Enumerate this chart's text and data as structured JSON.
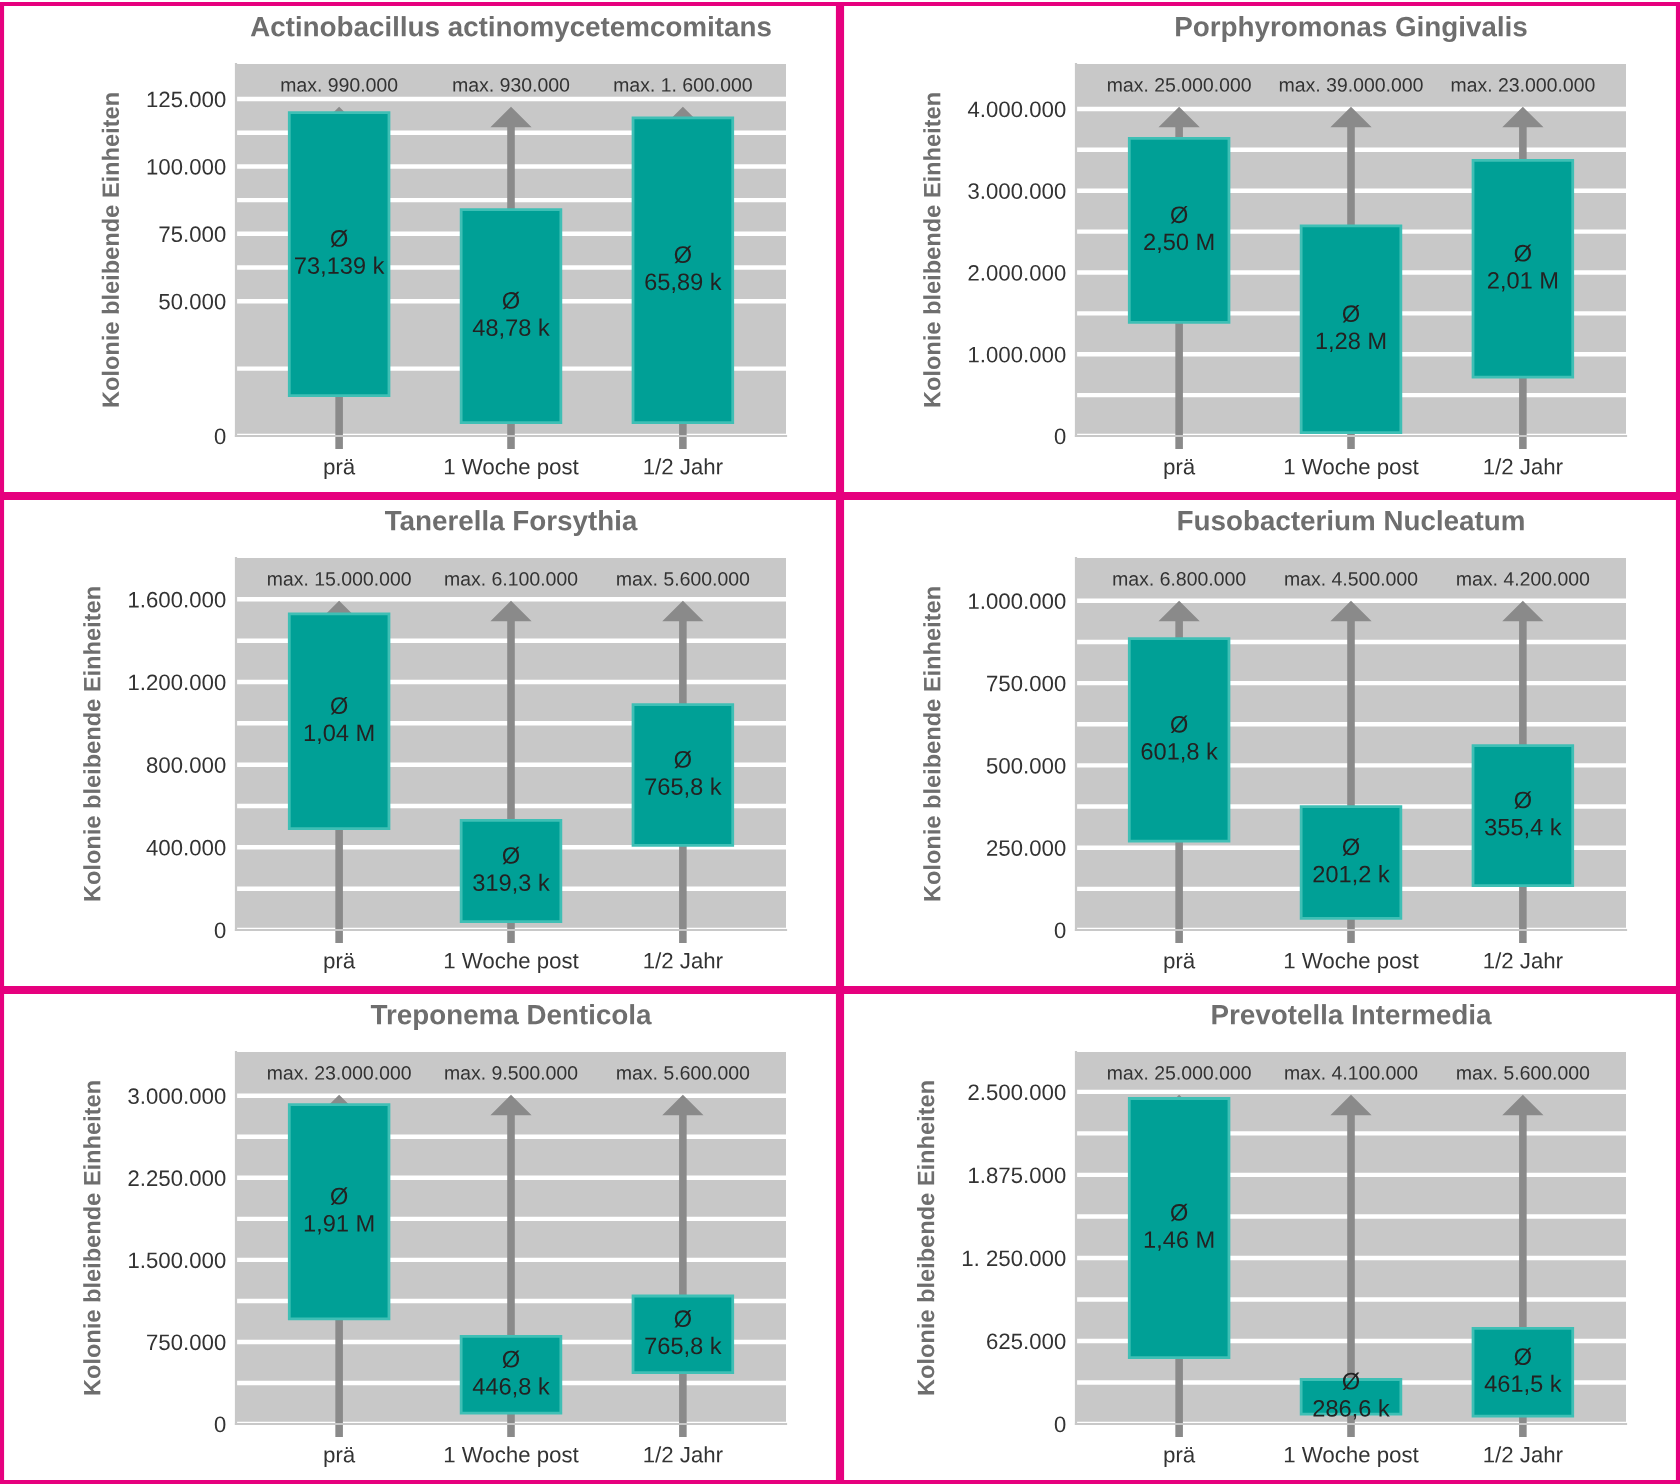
{
  "chart_data": [
    {
      "type": "bar",
      "title": "Actinobacillus actinomycetemcomitans",
      "ylabel": "Kolonie bleibende Einheiten",
      "categories": [
        "prä",
        "1 Woche post",
        "1/2 Jahr"
      ],
      "base": [
        15000,
        5000,
        5000
      ],
      "values": [
        105000,
        79000,
        113000
      ],
      "value_labels": [
        "Ø\n73,139 k",
        "Ø\n48,78 k",
        "Ø\n65,89 k"
      ],
      "annotations": [
        "max. 990.000",
        "max. 930.000",
        "max. 1. 600.000"
      ],
      "color": "#00a096",
      "ylim": [
        0,
        138000
      ],
      "yticks": [
        0,
        {
          "value": 50000,
          "label": "50.000"
        },
        {
          "value": 75000,
          "label": "75.000"
        },
        {
          "value": 100000,
          "label": "100.000"
        },
        {
          "value": 125000,
          "label": "125.000"
        }
      ],
      "grid": "y"
    },
    {
      "type": "bar",
      "title": "Porphyromonas Gingivalis",
      "ylabel": "Kolonie bleibende Einheiten",
      "categories": [
        "prä",
        "1 Woche post",
        "1/2 Jahr"
      ],
      "base": [
        1390000,
        40000,
        720000
      ],
      "values": [
        2250000,
        2530000,
        2650000
      ],
      "value_labels": [
        "Ø\n2,50 M",
        "Ø\n1,28 M",
        "Ø\n2,01 M"
      ],
      "annotations": [
        "max. 25.000.000",
        "max. 39.000.000",
        "max. 23.000.000"
      ],
      "color": "#00a096",
      "ylim": [
        0,
        4550000
      ],
      "yticks": [
        0,
        {
          "value": 1000000,
          "label": "1.000.000"
        },
        {
          "value": 2000000,
          "label": "2.000.000"
        },
        {
          "value": 3000000,
          "label": "3.000.000"
        },
        {
          "value": 4000000,
          "label": "4.000.000"
        }
      ],
      "grid": "y"
    },
    {
      "type": "bar",
      "title": "Tanerella Forsythia",
      "ylabel": "Kolonie bleibende Einheiten",
      "categories": [
        "prä",
        "1 Woche post",
        "1/2 Jahr"
      ],
      "base": [
        490000,
        40000,
        410000
      ],
      "values": [
        1040000,
        490000,
        680000
      ],
      "value_labels": [
        "Ø\n1,04 M",
        "Ø\n319,3 k",
        "Ø\n765,8 k"
      ],
      "annotations": [
        "max. 15.000.000",
        "max. 6.100.000",
        "max. 5.600.000"
      ],
      "color": "#00a096",
      "ylim": [
        0,
        1800000
      ],
      "yticks": [
        0,
        {
          "value": 400000,
          "label": "400.000"
        },
        {
          "value": 800000,
          "label": "800.000"
        },
        {
          "value": 1200000,
          "label": "1.200.000"
        },
        {
          "value": 1600000,
          "label": "1.600.000"
        }
      ],
      "grid": "y"
    },
    {
      "type": "bar",
      "title": "Fusobacterium Nucleatum",
      "ylabel": "Kolonie bleibende Einheiten",
      "categories": [
        "prä",
        "1 Woche post",
        "1/2 Jahr"
      ],
      "base": [
        270000,
        35000,
        135000
      ],
      "values": [
        615000,
        340000,
        425000
      ],
      "value_labels": [
        "Ø\n601,8 k",
        "Ø\n201,2 k",
        "Ø\n355,4 k"
      ],
      "annotations": [
        "max. 6.800.000",
        "max. 4.500.000",
        "max. 4.200.000"
      ],
      "color": "#00a096",
      "ylim": [
        0,
        1130000
      ],
      "yticks": [
        0,
        {
          "value": 250000,
          "label": "250.000"
        },
        {
          "value": 500000,
          "label": "500.000"
        },
        {
          "value": 750000,
          "label": "750.000"
        },
        {
          "value": 1000000,
          "label": "1.000.000"
        }
      ],
      "grid": "y"
    },
    {
      "type": "bar",
      "title": "Treponema Denticola",
      "ylabel": "Kolonie bleibende Einheiten",
      "categories": [
        "prä",
        "1 Woche post",
        "1/2 Jahr"
      ],
      "base": [
        960000,
        100000,
        470000
      ],
      "values": [
        1960000,
        700000,
        700000
      ],
      "value_labels": [
        "Ø\n1,91 M",
        "Ø\n446,8 k",
        "Ø\n765,8 k"
      ],
      "annotations": [
        "max. 23.000.000",
        "max. 9.500.000",
        "max. 5.600.000"
      ],
      "color": "#00a096",
      "ylim": [
        0,
        3400000
      ],
      "yticks": [
        0,
        {
          "value": 750000,
          "label": "750.000"
        },
        {
          "value": 1500000,
          "label": "1.500.000"
        },
        {
          "value": 2250000,
          "label": "2.250.000"
        },
        {
          "value": 3000000,
          "label": "3.000.000"
        }
      ],
      "grid": "y"
    },
    {
      "type": "bar",
      "title": "Prevotella Intermedia",
      "ylabel": "Kolonie bleibende Einheiten",
      "categories": [
        "prä",
        "1 Woche post",
        "1/2 Jahr"
      ],
      "base": [
        500000,
        75000,
        60000
      ],
      "values": [
        1950000,
        260000,
        660000
      ],
      "value_labels": [
        "Ø\n1,46 M",
        "Ø\n286,6 k",
        "Ø\n461,5 k"
      ],
      "annotations": [
        "max. 25.000.000",
        "max. 4.100.000",
        "max. 5.600.000"
      ],
      "color": "#00a096",
      "ylim": [
        0,
        2800000
      ],
      "yticks": [
        0,
        {
          "value": 625000,
          "label": "625.000"
        },
        {
          "value": 1250000,
          "label": "1. 250.000"
        },
        {
          "value": 1875000,
          "label": "1.875.000"
        },
        {
          "value": 2500000,
          "label": "2.500.000"
        }
      ],
      "grid": "y"
    }
  ]
}
